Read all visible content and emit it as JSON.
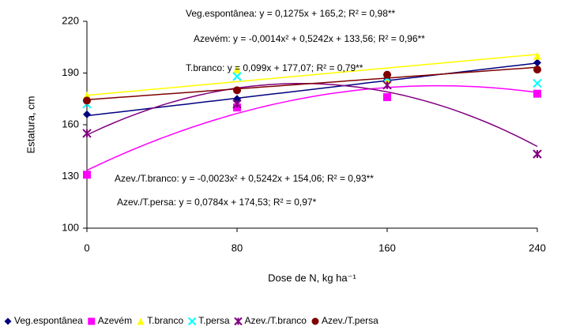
{
  "chart_data": {
    "type": "scatter",
    "x": [
      0,
      80,
      160,
      240
    ],
    "xlabel": "Dose de N, kg ha⁻¹",
    "ylabel": "Estatura, cm",
    "xlim": [
      0,
      240
    ],
    "xticks": [
      0,
      80,
      160,
      240
    ],
    "ylim": [
      100,
      220
    ],
    "yticks": [
      100,
      130,
      160,
      190,
      220
    ],
    "series": [
      {
        "name": "Veg.espontânea",
        "color": "#000080",
        "marker": "diamond",
        "values": [
          166,
          175,
          186,
          196
        ],
        "fit": [
          165.2,
          0.1275,
          0
        ]
      },
      {
        "name": "Azevém",
        "color": "#ff00ff",
        "marker": "square",
        "values": [
          131,
          170,
          176,
          178
        ],
        "fit": [
          133.56,
          0.5242,
          -0.0014
        ]
      },
      {
        "name": "T.branco",
        "color": "#ffff00",
        "marker": "triangle",
        "values": [
          177,
          192,
          186,
          200
        ],
        "fit": [
          177.07,
          0.099,
          0
        ]
      },
      {
        "name": "T.persa",
        "color": "#00ffff",
        "marker": "x",
        "values": [
          172,
          188,
          187,
          184
        ]
      },
      {
        "name": "Azev./T.branco",
        "color": "#800080",
        "marker": "star",
        "values": [
          155,
          172,
          183,
          143
        ],
        "fit": [
          154.06,
          0.5242,
          -0.0023
        ]
      },
      {
        "name": "Azev./T.persa",
        "color": "#800000",
        "marker": "circle",
        "values": [
          174,
          180,
          189,
          192
        ],
        "fit": [
          174.53,
          0.0784,
          0
        ]
      }
    ],
    "annotations": [
      "Veg.espontânea: y = 0,1275x + 165,2; R² = 0,98**",
      "Azevém: y = -0,0014x² + 0,5242x + 133,56; R² = 0,96**",
      "T.branco: y = 0,099x + 177,07; R² = 0,79**",
      "Azev./T.branco: y = -0,0023x² + 0,5242x + 154,06; R² = 0,93**",
      "Azev./T.persa: y = 0,0784x + 174,53; R² = 0,97*"
    ],
    "legend": "bottom"
  }
}
